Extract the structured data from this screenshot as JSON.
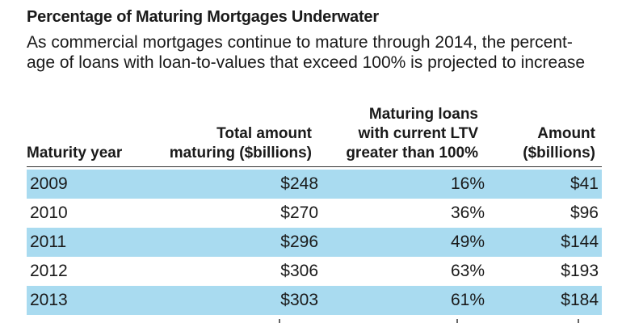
{
  "chart_data": {
    "type": "table",
    "title": "Percentage of Maturing Mortgages Underwater",
    "subtitle_lines": [
      "As commercial mortgages continue to mature through 2014, the percent-",
      "age of loans with loan-to-values that exceed 100% is projected to increase"
    ],
    "columns": [
      {
        "lines": [
          "Maturity year"
        ]
      },
      {
        "lines": [
          "Total amount",
          "maturing ($billions)"
        ]
      },
      {
        "lines": [
          "Maturing loans",
          "with current LTV",
          "greater than 100%"
        ]
      },
      {
        "lines": [
          "Amount",
          "($billions)"
        ]
      }
    ],
    "rows": [
      {
        "year": "2009",
        "total": "$248",
        "pct": "16%",
        "amount": "$41"
      },
      {
        "year": "2010",
        "total": "$270",
        "pct": "36%",
        "amount": "$96"
      },
      {
        "year": "2011",
        "total": "$296",
        "pct": "49%",
        "amount": "$144"
      },
      {
        "year": "2012",
        "total": "$306",
        "pct": "63%",
        "amount": "$193"
      },
      {
        "year": "2013",
        "total": "$303",
        "pct": "61%",
        "amount": "$184"
      }
    ],
    "shaded_row_color": "#a9dbf0"
  }
}
